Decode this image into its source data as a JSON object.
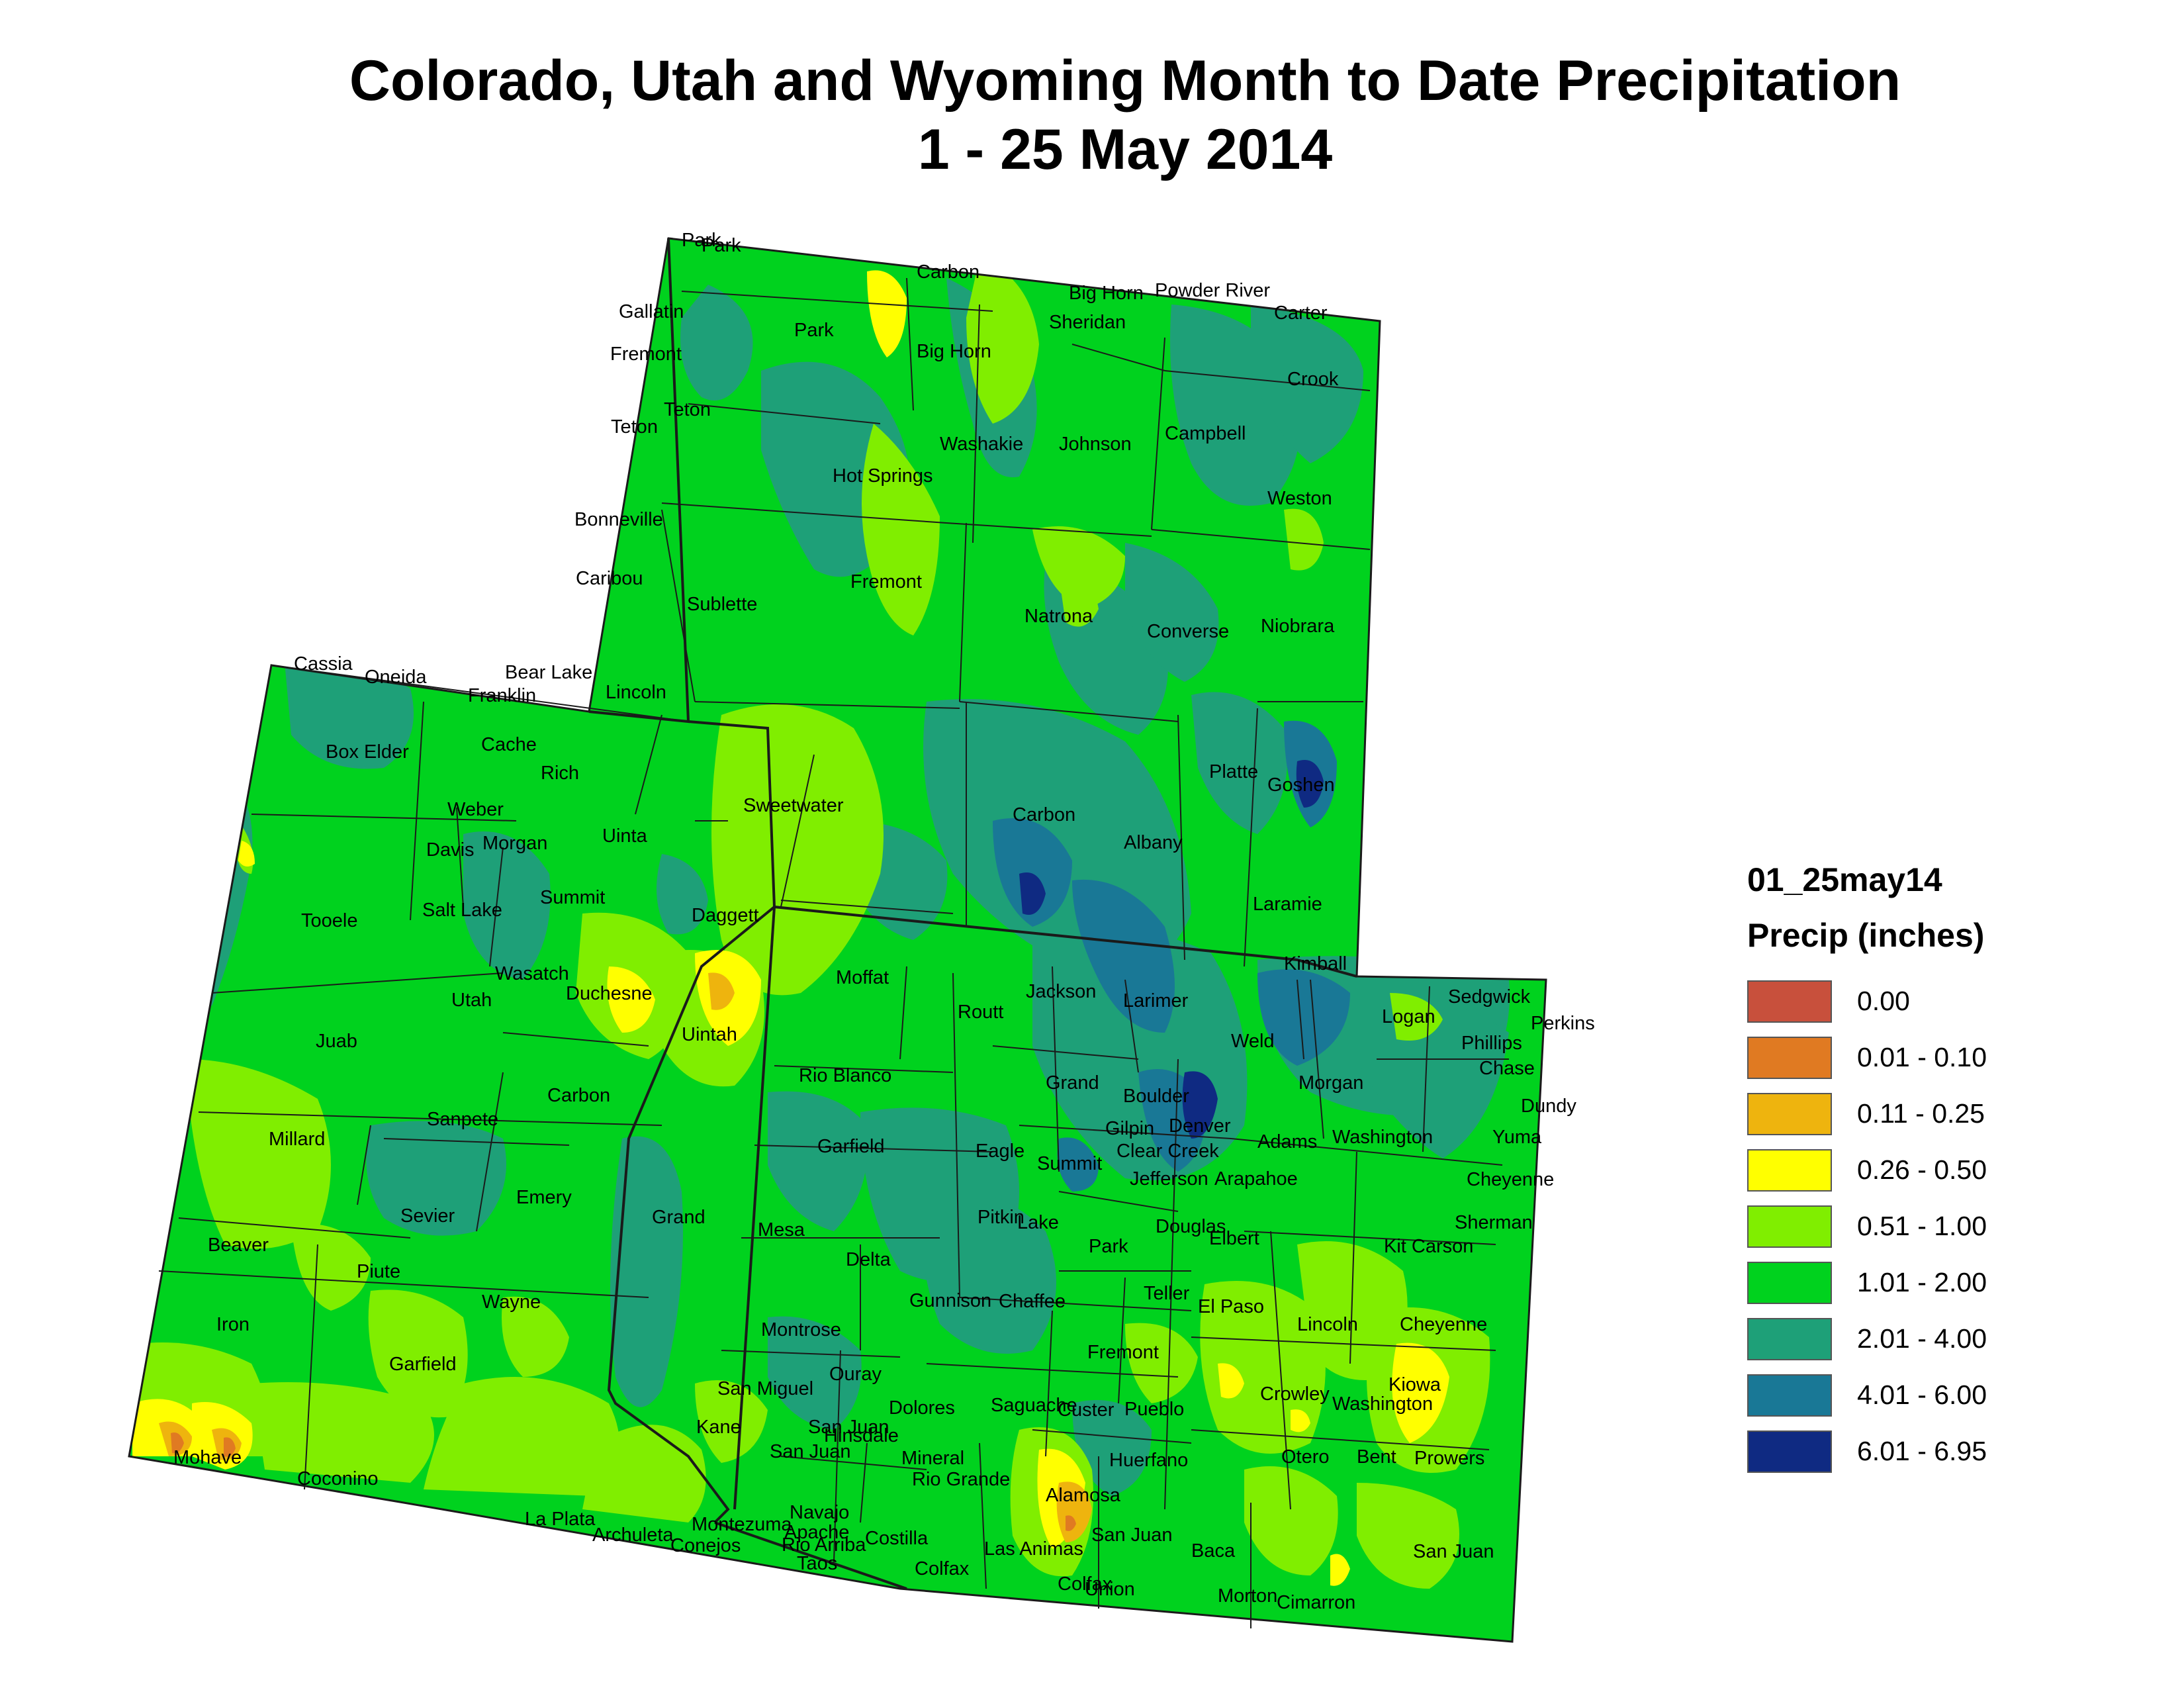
{
  "title": {
    "line1": "Colorado, Utah and Wyoming Month to Date Precipitation",
    "line2": "1 - 25 May 2014"
  },
  "legend": {
    "layer_name": "01_25may14",
    "units": "Precip (inches)",
    "classes": [
      {
        "label": "0.00",
        "color": "#c8503c"
      },
      {
        "label": "0.01 - 0.10",
        "color": "#e07a22"
      },
      {
        "label": "0.11 - 0.25",
        "color": "#eeb40e"
      },
      {
        "label": "0.26 - 0.50",
        "color": "#ffff00"
      },
      {
        "label": "0.51 - 1.00",
        "color": "#80ee00"
      },
      {
        "label": "1.01 - 2.00",
        "color": "#00d21e"
      },
      {
        "label": "2.01 - 4.00",
        "color": "#1ea078"
      },
      {
        "label": "4.01 - 6.00",
        "color": "#197896"
      },
      {
        "label": "6.01 - 6.95",
        "color": "#0f2a82"
      }
    ]
  },
  "map_colors": {
    "base": "#00d21e",
    "wet": "#1ea078",
    "very_wet": "#197896",
    "wettest": "#0f2a82",
    "dry": "#80ee00",
    "drier": "#ffff00",
    "driest": "#eeb40e",
    "very_dry": "#e07a22",
    "border": "#1a1a1a"
  },
  "county_labels": [
    "Park",
    "Park",
    "Carbon",
    "Big Horn",
    "Powder River",
    "Gallatin",
    "Sheridan",
    "Carter",
    "Park",
    "Big Horn",
    "Fremont",
    "Crook",
    "Teton",
    "Teton",
    "Washakie",
    "Johnson",
    "Campbell",
    "Hot Springs",
    "Bonneville",
    "Weston",
    "Caribou",
    "Fremont",
    "Sublette",
    "Natrona",
    "Converse",
    "Niobrara",
    "Cassia",
    "Oneida",
    "Bear Lake",
    "Franklin",
    "Lincoln",
    "Box Elder",
    "Cache",
    "Rich",
    "Platte",
    "Goshen",
    "Sweetwater",
    "Weber",
    "Carbon",
    "Davis",
    "Morgan",
    "Uinta",
    "Albany",
    "Tooele",
    "Summit",
    "Salt Lake",
    "Daggett",
    "Laramie",
    "Wasatch",
    "Duchesne",
    "Moffat",
    "Kimball",
    "Sedgwick",
    "Perkins",
    "Utah",
    "Jackson",
    "Larimer",
    "Logan",
    "Uintah",
    "Routt",
    "Phillips",
    "Weld",
    "Chase",
    "Juab",
    "Rio Blanco",
    "Boulder",
    "Morgan",
    "Dundy",
    "Grand",
    "Carbon",
    "Sanpete",
    "Gilpin",
    "Denver",
    "Millard",
    "Adams",
    "Washington",
    "Yuma",
    "Garfield",
    "Clear Creek",
    "Eagle",
    "Summit",
    "Jefferson",
    "Arapahoe",
    "Cheyenne",
    "Emery",
    "Sevier",
    "Grand",
    "Pitkin",
    "Douglas",
    "Sherman",
    "Mesa",
    "Lake",
    "Beaver",
    "Elbert",
    "Park",
    "Kit Carson",
    "Piute",
    "Delta",
    "Wayne",
    "Teller",
    "Gunnison",
    "Chaffee",
    "El Paso",
    "Lincoln",
    "Cheyenne",
    "Iron",
    "Montrose",
    "Fremont",
    "Garfield",
    "Ouray",
    "Kiowa",
    "San Miguel",
    "Crowley",
    "Washington",
    "Saguache",
    "Custer",
    "Pueblo",
    "Dolores",
    "Kane",
    "San Juan",
    "Hinsdale",
    "San Juan",
    "Mohave",
    "Mineral",
    "Otero",
    "Bent",
    "Huerfano",
    "Prowers",
    "Coconino",
    "Rio Grande",
    "Alamosa",
    "Montezuma",
    "Navajo",
    "La Plata",
    "Apache",
    "Archuleta",
    "Costilla",
    "San Juan",
    "Conejos",
    "Las Animas",
    "Baca",
    "San Juan",
    "Rio Arriba",
    "Taos",
    "Colfax",
    "Colfax",
    "Union",
    "Morton",
    "Cimarron"
  ]
}
